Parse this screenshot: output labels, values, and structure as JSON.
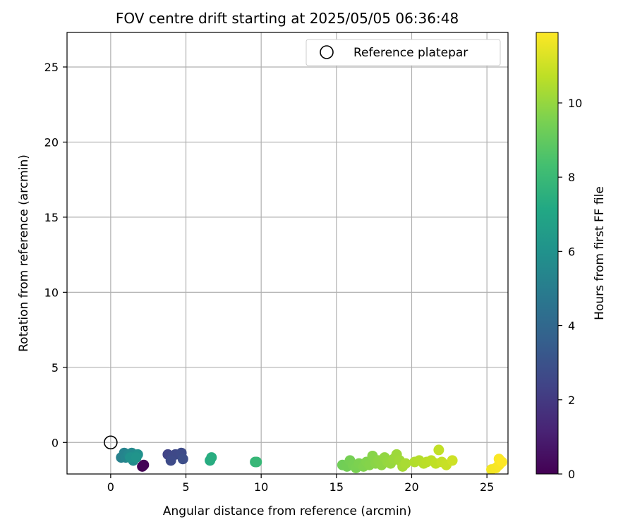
{
  "chart_data": {
    "type": "scatter",
    "title": "FOV centre drift starting at 2025/05/05 06:36:48",
    "xlabel": "Angular distance from reference (arcmin)",
    "ylabel": "Rotation from reference (arcmin)",
    "xlim": [
      -2.9,
      26.4
    ],
    "ylim": [
      -2.1,
      27.3
    ],
    "xticks": [
      0,
      5,
      10,
      15,
      20,
      25
    ],
    "yticks": [
      0,
      5,
      10,
      15,
      20,
      25
    ],
    "grid": true,
    "legend": {
      "placement": "top-right",
      "entries": [
        "Reference platepar"
      ]
    },
    "colorbar": {
      "label": "Hours from first FF file",
      "range": [
        0,
        11.9
      ],
      "ticks": [
        0,
        2,
        4,
        6,
        8,
        10
      ],
      "colormap": "viridis"
    },
    "reference_point": {
      "x": 0,
      "y": 0,
      "name": "Reference platepar"
    },
    "points": [
      {
        "x": 2.1,
        "y": -1.6,
        "h": 0.0
      },
      {
        "x": 2.2,
        "y": -1.5,
        "h": 0.1
      },
      {
        "x": 3.8,
        "y": -0.8,
        "h": 2.4
      },
      {
        "x": 4.1,
        "y": -0.9,
        "h": 2.5
      },
      {
        "x": 4.3,
        "y": -0.8,
        "h": 2.6
      },
      {
        "x": 4.0,
        "y": -1.2,
        "h": 2.7
      },
      {
        "x": 4.7,
        "y": -0.7,
        "h": 2.7
      },
      {
        "x": 4.8,
        "y": -1.1,
        "h": 2.8
      },
      {
        "x": 0.7,
        "y": -1.0,
        "h": 5.2
      },
      {
        "x": 0.9,
        "y": -0.7,
        "h": 5.3
      },
      {
        "x": 1.0,
        "y": -1.0,
        "h": 5.4
      },
      {
        "x": 1.2,
        "y": -0.8,
        "h": 5.5
      },
      {
        "x": 1.4,
        "y": -0.7,
        "h": 5.6
      },
      {
        "x": 1.5,
        "y": -1.2,
        "h": 5.7
      },
      {
        "x": 1.6,
        "y": -0.9,
        "h": 5.8
      },
      {
        "x": 1.8,
        "y": -0.8,
        "h": 5.9
      },
      {
        "x": 1.3,
        "y": -1.0,
        "h": 6.0
      },
      {
        "x": 1.7,
        "y": -1.0,
        "h": 6.1
      },
      {
        "x": 6.6,
        "y": -1.2,
        "h": 7.3
      },
      {
        "x": 6.7,
        "y": -1.0,
        "h": 7.4
      },
      {
        "x": 9.6,
        "y": -1.3,
        "h": 7.8
      },
      {
        "x": 9.7,
        "y": -1.3,
        "h": 7.9
      },
      {
        "x": 15.4,
        "y": -1.5,
        "h": 9.3
      },
      {
        "x": 15.7,
        "y": -1.6,
        "h": 9.35
      },
      {
        "x": 15.9,
        "y": -1.2,
        "h": 9.4
      },
      {
        "x": 16.1,
        "y": -1.5,
        "h": 9.45
      },
      {
        "x": 16.3,
        "y": -1.7,
        "h": 9.5
      },
      {
        "x": 16.5,
        "y": -1.4,
        "h": 9.55
      },
      {
        "x": 16.8,
        "y": -1.6,
        "h": 9.6
      },
      {
        "x": 17.0,
        "y": -1.3,
        "h": 9.65
      },
      {
        "x": 17.2,
        "y": -1.5,
        "h": 9.7
      },
      {
        "x": 17.4,
        "y": -0.9,
        "h": 9.75
      },
      {
        "x": 17.6,
        "y": -1.4,
        "h": 9.8
      },
      {
        "x": 17.8,
        "y": -1.2,
        "h": 9.85
      },
      {
        "x": 18.0,
        "y": -1.5,
        "h": 9.9
      },
      {
        "x": 18.2,
        "y": -1.0,
        "h": 9.95
      },
      {
        "x": 18.4,
        "y": -1.3,
        "h": 10.0
      },
      {
        "x": 18.6,
        "y": -1.4,
        "h": 10.05
      },
      {
        "x": 18.8,
        "y": -1.1,
        "h": 10.1
      },
      {
        "x": 19.0,
        "y": -0.8,
        "h": 10.15
      },
      {
        "x": 19.2,
        "y": -1.2,
        "h": 10.2
      },
      {
        "x": 19.4,
        "y": -1.6,
        "h": 10.3
      },
      {
        "x": 19.6,
        "y": -1.4,
        "h": 10.35
      },
      {
        "x": 20.2,
        "y": -1.3,
        "h": 10.5
      },
      {
        "x": 20.5,
        "y": -1.2,
        "h": 10.55
      },
      {
        "x": 20.8,
        "y": -1.4,
        "h": 10.6
      },
      {
        "x": 21.0,
        "y": -1.3,
        "h": 10.65
      },
      {
        "x": 21.3,
        "y": -1.2,
        "h": 10.7
      },
      {
        "x": 21.6,
        "y": -1.4,
        "h": 10.75
      },
      {
        "x": 21.8,
        "y": -0.5,
        "h": 10.8
      },
      {
        "x": 22.0,
        "y": -1.3,
        "h": 10.85
      },
      {
        "x": 22.3,
        "y": -1.5,
        "h": 10.9
      },
      {
        "x": 22.7,
        "y": -1.2,
        "h": 11.0
      },
      {
        "x": 25.3,
        "y": -1.8,
        "h": 11.7
      },
      {
        "x": 25.6,
        "y": -1.7,
        "h": 11.75
      },
      {
        "x": 25.8,
        "y": -1.5,
        "h": 11.8
      },
      {
        "x": 25.8,
        "y": -1.1,
        "h": 11.85
      },
      {
        "x": 26.0,
        "y": -1.3,
        "h": 11.9
      }
    ]
  }
}
